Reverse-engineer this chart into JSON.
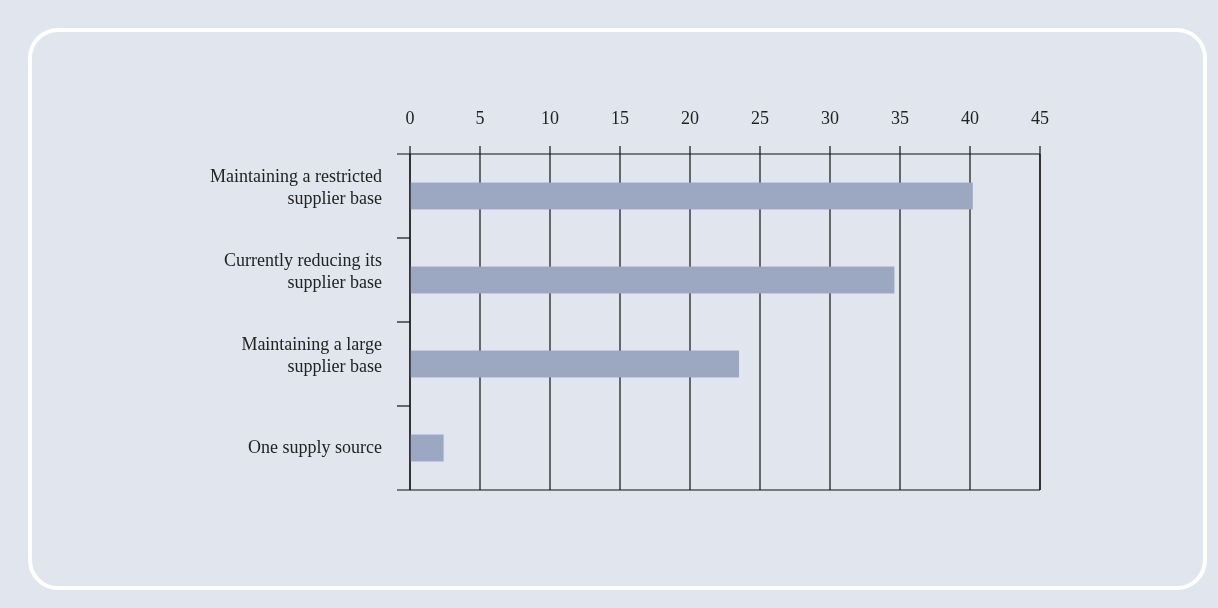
{
  "chart_data": {
    "type": "bar",
    "orientation": "horizontal",
    "categories": [
      "Maintaining a restricted supplier base",
      "Currently reducing its supplier base",
      "Maintaining a large supplier base",
      "One supply source"
    ],
    "values": [
      40.2,
      34.6,
      23.5,
      2.4
    ],
    "color": "#9ca8c2",
    "xlim": [
      0,
      45
    ],
    "xticks": [
      0,
      5,
      10,
      15,
      20,
      25,
      30,
      35,
      40,
      45
    ],
    "grid": "x"
  }
}
